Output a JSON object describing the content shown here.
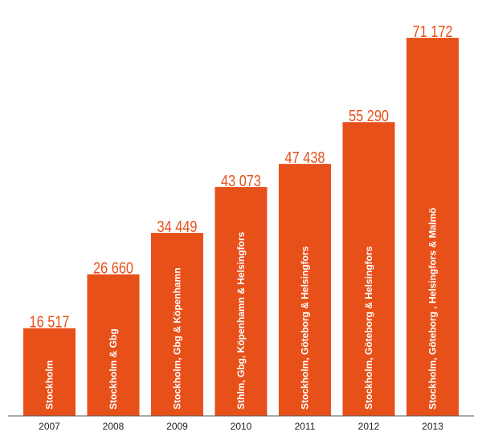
{
  "chart_data": {
    "type": "bar",
    "categories": [
      "2007",
      "2008",
      "2009",
      "2010",
      "2011",
      "2012",
      "2013"
    ],
    "values": [
      16517,
      26660,
      34449,
      43073,
      47438,
      55290,
      71172
    ],
    "value_labels": [
      "16 517",
      "26 660",
      "34 449",
      "43 073",
      "47 438",
      "55 290",
      "71 172"
    ],
    "bar_texts": [
      "Stockholm",
      "Stockholm & Gbg",
      "Stockholm, Gbg & Köpenhamn",
      "Sthlm, Gbg, Köpenhamn & Helsingfors",
      "Stockholm, Göteborg & Helsingfors",
      "Stockholm, Göteborg & Helsingfors",
      "Stockholm, Göteborg , Helsingfors & Malmö"
    ],
    "title": "",
    "xlabel": "",
    "ylabel": "",
    "ylim": [
      0,
      73000
    ],
    "grid": false,
    "colors": {
      "bar": "#e8501a",
      "bar_text": "#ffffff",
      "axis_text": "#222222"
    }
  }
}
